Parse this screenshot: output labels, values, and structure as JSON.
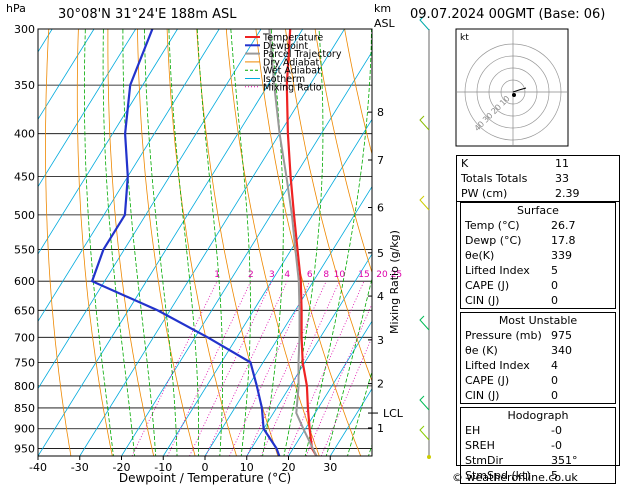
{
  "header": {
    "location": "30°08'N  31°24'E  188m  ASL",
    "datetime": "09.07.2024  00GMT  (Base: 06)",
    "units_left": "hPa",
    "units_right_1": "km",
    "units_right_2": "ASL"
  },
  "footer": {
    "credit": "© weatheronline.co.uk"
  },
  "indices": [
    {
      "label": "K",
      "value": "11"
    },
    {
      "label": "Totals Totals",
      "value": "33"
    },
    {
      "label": "PW (cm)",
      "value": "2.39"
    }
  ],
  "surface": {
    "title": "Surface",
    "rows": [
      {
        "label": "Temp (°C)",
        "value": "26.7"
      },
      {
        "label": "Dewp (°C)",
        "value": "17.8"
      },
      {
        "label": "θe(K)",
        "value": "339"
      },
      {
        "label": "Lifted Index",
        "value": "5"
      },
      {
        "label": "CAPE (J)",
        "value": "0"
      },
      {
        "label": "CIN (J)",
        "value": "0"
      }
    ]
  },
  "most_unstable": {
    "title": "Most Unstable",
    "rows": [
      {
        "label": "Pressure (mb)",
        "value": "975"
      },
      {
        "label": "θe (K)",
        "value": "340"
      },
      {
        "label": "Lifted Index",
        "value": "4"
      },
      {
        "label": "CAPE (J)",
        "value": "0"
      },
      {
        "label": "CIN (J)",
        "value": "0"
      }
    ]
  },
  "hodograph_box": {
    "title": "Hodograph",
    "rows": [
      {
        "label": "EH",
        "value": "-0"
      },
      {
        "label": "SREH",
        "value": "-0"
      },
      {
        "label": "StmDir",
        "value": "351°"
      },
      {
        "label": "StmSpd (kt)",
        "value": "5"
      }
    ]
  },
  "hodograph_plot": {
    "label": "kt",
    "ring_labels": [
      "10",
      "20",
      "30",
      "40"
    ]
  },
  "colors": {
    "temperature": "#ee2222",
    "dewpoint": "#2233cc",
    "parcel": "#999999",
    "dry_adiabat": "#ee8800",
    "wet_adiabat": "#00aa00",
    "isotherm": "#00aadd",
    "mixing_ratio": "#dd00aa"
  },
  "chart_data": {
    "type": "skew-t",
    "title": "30°08'N 31°24'E 188m ASL",
    "xlabel": "Dewpoint / Temperature (°C)",
    "ylabel": "hPa",
    "right_ylabel": "Mixing Ratio (g/kg)",
    "xlim": [
      -40,
      40
    ],
    "ylim": [
      970,
      300
    ],
    "x_ticks": [
      -40,
      -30,
      -20,
      -10,
      0,
      10,
      20,
      30
    ],
    "pressure_levels": [
      300,
      350,
      400,
      450,
      500,
      550,
      600,
      650,
      700,
      750,
      800,
      850,
      900,
      950
    ],
    "km_ticks": [
      {
        "km": "1",
        "p": 898
      },
      {
        "km": "2",
        "p": 795
      },
      {
        "km": "3",
        "p": 705
      },
      {
        "km": "4",
        "p": 625
      },
      {
        "km": "5",
        "p": 555
      },
      {
        "km": "6",
        "p": 490
      },
      {
        "km": "7",
        "p": 430
      },
      {
        "km": "8",
        "p": 377
      }
    ],
    "lcl": {
      "label": "LCL",
      "p": 862
    },
    "mixing_ratio_labels": [
      {
        "label": "1",
        "g": 1
      },
      {
        "label": "2",
        "g": 2
      },
      {
        "label": "3",
        "g": 3
      },
      {
        "label": "4",
        "g": 4
      },
      {
        "label": "6",
        "g": 6
      },
      {
        "label": "8",
        "g": 8
      },
      {
        "label": "10",
        "g": 10
      },
      {
        "label": "15",
        "g": 15
      },
      {
        "label": "20",
        "g": 20
      },
      {
        "label": "25",
        "g": 25
      }
    ],
    "legend": [
      "Temperature",
      "Dewpoint",
      "Parcel Trajectory",
      "Dry Adiabat",
      "Wet Adiabat",
      "Isotherm",
      "Mixing Ratio"
    ],
    "series": [
      {
        "name": "Temperature",
        "points": [
          [
            970,
            26.7
          ],
          [
            950,
            24.5
          ],
          [
            900,
            21
          ],
          [
            850,
            17.5
          ],
          [
            800,
            14
          ],
          [
            750,
            9.5
          ],
          [
            700,
            5.5
          ],
          [
            650,
            1.5
          ],
          [
            600,
            -3
          ],
          [
            550,
            -8.5
          ],
          [
            500,
            -14.5
          ],
          [
            450,
            -21
          ],
          [
            400,
            -28
          ],
          [
            350,
            -35.5
          ],
          [
            300,
            -43
          ]
        ]
      },
      {
        "name": "Dewpoint",
        "points": [
          [
            970,
            17.8
          ],
          [
            950,
            16
          ],
          [
            900,
            10
          ],
          [
            850,
            6.5
          ],
          [
            800,
            2
          ],
          [
            750,
            -3
          ],
          [
            700,
            -17
          ],
          [
            650,
            -33
          ],
          [
            600,
            -53
          ],
          [
            550,
            -55
          ],
          [
            500,
            -55
          ],
          [
            450,
            -60
          ],
          [
            400,
            -67
          ],
          [
            350,
            -73
          ],
          [
            300,
            -76
          ]
        ]
      },
      {
        "name": "Parcel Trajectory",
        "points": [
          [
            970,
            26.7
          ],
          [
            900,
            19.5
          ],
          [
            862,
            15.5
          ],
          [
            800,
            12
          ],
          [
            750,
            8.5
          ],
          [
            700,
            5
          ],
          [
            650,
            1
          ],
          [
            600,
            -3.5
          ],
          [
            550,
            -9
          ],
          [
            500,
            -15
          ],
          [
            450,
            -22
          ],
          [
            400,
            -30
          ],
          [
            350,
            -38.5
          ],
          [
            300,
            -48
          ]
        ]
      }
    ]
  }
}
